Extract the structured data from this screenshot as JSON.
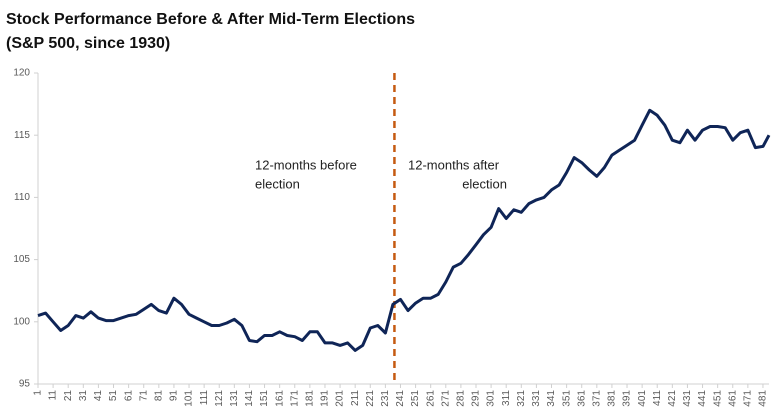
{
  "chart_data": {
    "type": "line",
    "title": "Stock Performance Before & After Mid-Term Elections",
    "subtitle": "(S&P 500, since 1930)",
    "x": [
      1,
      6,
      11,
      16,
      21,
      26,
      31,
      36,
      41,
      46,
      51,
      56,
      61,
      66,
      71,
      76,
      81,
      86,
      91,
      96,
      101,
      106,
      111,
      116,
      121,
      126,
      131,
      136,
      141,
      146,
      151,
      156,
      161,
      166,
      171,
      176,
      181,
      186,
      191,
      196,
      201,
      206,
      211,
      216,
      221,
      226,
      231,
      236,
      241,
      246,
      251,
      256,
      261,
      266,
      271,
      276,
      281,
      286,
      291,
      296,
      301,
      306,
      311,
      316,
      321,
      326,
      331,
      336,
      341,
      346,
      351,
      356,
      361,
      366,
      371,
      376,
      381,
      386,
      391,
      396,
      401,
      406,
      411,
      416,
      421,
      426,
      431,
      436,
      441,
      446,
      451,
      456,
      461,
      466,
      471,
      476,
      481,
      485
    ],
    "series": [
      {
        "name": "S&P 500",
        "color": "#0f2557",
        "values": [
          100.5,
          100.7,
          100.0,
          99.3,
          99.7,
          100.5,
          100.3,
          100.8,
          100.3,
          100.1,
          100.1,
          100.3,
          100.5,
          100.6,
          101.0,
          101.4,
          100.9,
          100.7,
          101.9,
          101.4,
          100.6,
          100.3,
          100.0,
          99.7,
          99.7,
          99.9,
          100.2,
          99.7,
          98.5,
          98.4,
          98.9,
          98.9,
          99.2,
          98.9,
          98.8,
          98.5,
          99.2,
          99.2,
          98.3,
          98.3,
          98.1,
          98.3,
          97.7,
          98.1,
          99.5,
          99.7,
          99.1,
          101.4,
          101.8,
          100.9,
          101.5,
          101.9,
          101.9,
          102.2,
          103.2,
          104.4,
          104.7,
          105.4,
          106.2,
          107.0,
          107.6,
          109.1,
          108.3,
          109.0,
          108.8,
          109.5,
          109.8,
          110.0,
          110.6,
          111.0,
          112.0,
          113.2,
          112.8,
          112.2,
          111.7,
          112.4,
          113.4,
          113.8,
          114.2,
          114.6,
          115.8,
          117.0,
          116.6,
          115.8,
          114.6,
          114.4,
          115.4,
          114.6,
          115.4,
          115.7,
          115.7,
          115.6,
          114.6,
          115.2,
          115.4,
          114.0,
          114.1,
          115.0
        ]
      }
    ],
    "xlim": [
      1,
      485
    ],
    "xticks": [
      1,
      11,
      21,
      31,
      41,
      51,
      61,
      71,
      81,
      91,
      101,
      111,
      121,
      131,
      141,
      151,
      161,
      171,
      181,
      191,
      201,
      211,
      221,
      231,
      241,
      251,
      261,
      271,
      281,
      291,
      301,
      311,
      321,
      331,
      341,
      351,
      361,
      371,
      381,
      391,
      401,
      411,
      421,
      431,
      441,
      451,
      461,
      471,
      481
    ],
    "ylim": [
      95,
      120
    ],
    "yticks": [
      95,
      100,
      105,
      110,
      115,
      120
    ],
    "vline": {
      "x": 237,
      "color": "#c55a11"
    },
    "annotations": [
      {
        "text": [
          "12-months before",
          "election"
        ]
      },
      {
        "text": [
          "12-months after",
          "election"
        ]
      }
    ]
  }
}
